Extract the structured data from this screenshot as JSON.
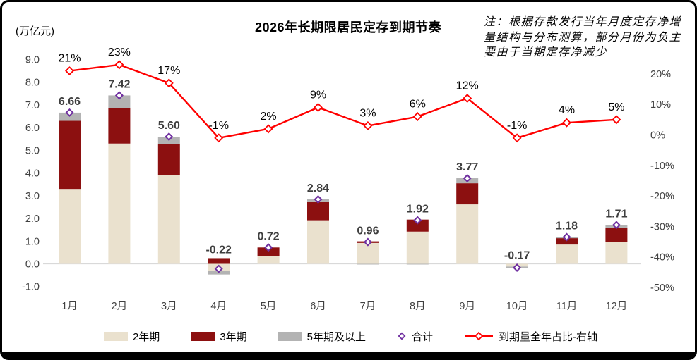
{
  "header": {
    "title": "2026年长期限居民定存到期节奏",
    "unit_label": "(万亿元)",
    "note": "注：根据存款发行当年月度定存净增量结构与分布测算，部分月份为负主要由于当期定存净减少"
  },
  "colors": {
    "bar_2y": "#EAE1CE",
    "bar_3y": "#8C1010",
    "bar_5y": "#B3B3B3",
    "total_marker": "#7030A0",
    "line": "#FF0000",
    "zero_line": "#D9D9D9",
    "value_label": "#3F3F3F",
    "axis_text": "#404040"
  },
  "legend": [
    {
      "label": "2年期",
      "type": "swatch",
      "color": "#EAE1CE"
    },
    {
      "label": "3年期",
      "type": "swatch",
      "color": "#8C1010"
    },
    {
      "label": "5年期及以上",
      "type": "swatch",
      "color": "#B3B3B3"
    },
    {
      "label": "合计",
      "type": "diamond",
      "color": "#7030A0"
    },
    {
      "label": "到期量全年占比-右轴",
      "type": "line-diamond",
      "color": "#FF0000"
    }
  ],
  "chart_data": {
    "type": "bar",
    "subtype": "stacked-bar-with-line",
    "title": "2026年长期限居民定存到期节奏",
    "categories": [
      "1月",
      "2月",
      "3月",
      "4月",
      "5月",
      "6月",
      "7月",
      "8月",
      "9月",
      "10月",
      "11月",
      "12月"
    ],
    "series": [
      {
        "name": "2年期",
        "kind": "bar",
        "color": "#EAE1CE",
        "values": [
          3.3,
          5.3,
          3.9,
          -0.32,
          0.33,
          1.92,
          0.92,
          1.42,
          2.62,
          -0.12,
          0.85,
          0.97
        ]
      },
      {
        "name": "3年期",
        "kind": "bar",
        "color": "#8C1010",
        "values": [
          3.0,
          1.57,
          1.37,
          0.25,
          0.39,
          0.8,
          0.07,
          0.53,
          0.93,
          0.0,
          0.28,
          0.63
        ]
      },
      {
        "name": "5年期及以上",
        "kind": "bar",
        "color": "#B3B3B3",
        "values": [
          0.36,
          0.55,
          0.33,
          -0.15,
          0.0,
          0.12,
          -0.03,
          -0.03,
          0.22,
          -0.05,
          0.05,
          0.11
        ]
      },
      {
        "name": "合计",
        "kind": "point",
        "color": "#7030A0",
        "values": [
          6.66,
          7.42,
          5.6,
          -0.22,
          0.72,
          2.84,
          0.96,
          1.92,
          3.77,
          -0.17,
          1.18,
          1.71
        ]
      },
      {
        "name": "到期量全年占比-右轴",
        "kind": "line",
        "axis": "right",
        "color": "#FF0000",
        "values": [
          21,
          23,
          17,
          -1,
          2,
          9,
          3,
          6,
          12,
          -1,
          4,
          5
        ]
      }
    ],
    "bar_total_labels": [
      "6.66",
      "7.42",
      "5.60",
      "-0.22",
      "0.72",
      "2.84",
      "0.96",
      "1.92",
      "3.77",
      "-0.17",
      "1.18",
      "1.71"
    ],
    "line_labels": [
      "21%",
      "23%",
      "17%",
      "-1%",
      "2%",
      "9%",
      "3%",
      "6%",
      "12%",
      "-1%",
      "4%",
      "5%"
    ],
    "left_axis": {
      "label": "(万亿元)",
      "min": -1.0,
      "max": 9.0,
      "ticks": [
        "9.0",
        "8.0",
        "7.0",
        "6.0",
        "5.0",
        "4.0",
        "3.0",
        "2.0",
        "1.0",
        "0.0",
        "-1.0"
      ],
      "tick_values": [
        9,
        8,
        7,
        6,
        5,
        4,
        3,
        2,
        1,
        0,
        -1
      ]
    },
    "right_axis": {
      "label": "到期量全年占比",
      "ticks": [
        "20%",
        "10%",
        "0%",
        "-10%",
        "-20%",
        "-30%",
        "-40%",
        "-50%"
      ],
      "tick_values": [
        20,
        10,
        0,
        -10,
        -20,
        -30,
        -40,
        -50
      ]
    },
    "grid": false,
    "legend_position": "bottom"
  }
}
